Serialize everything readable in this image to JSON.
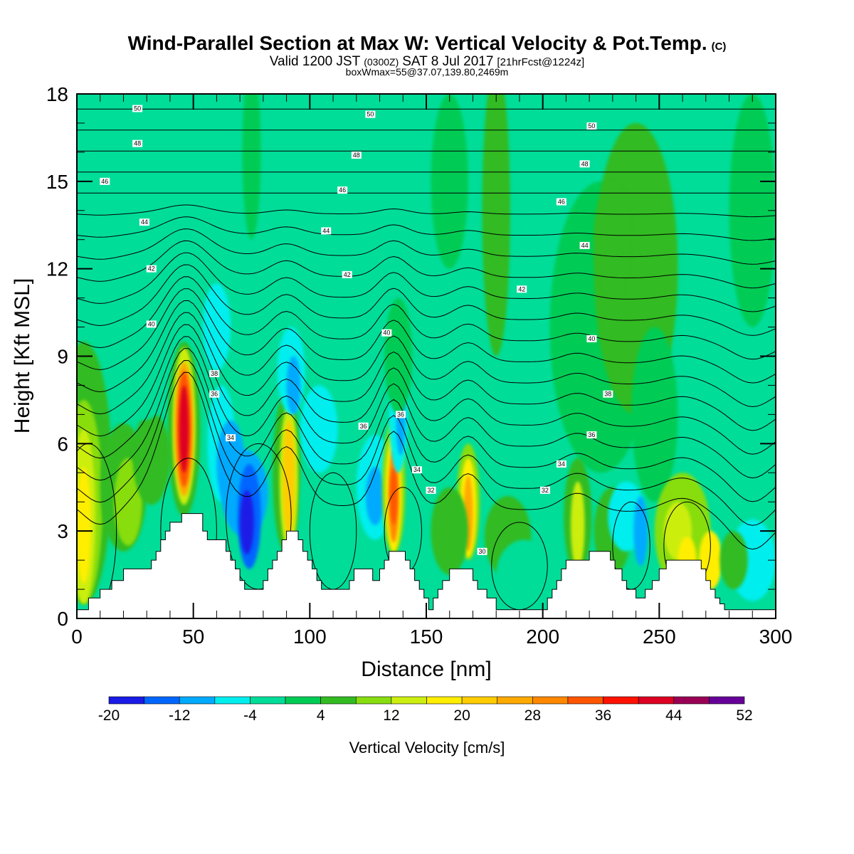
{
  "title": "Wind-Parallel Section at Max W: Vertical Velocity & Pot.Temp.",
  "title_mark": "(C)",
  "subtitle_a": "Valid 1200 JST",
  "subtitle_b": "(0300Z)",
  "subtitle_c": "SAT 8 Jul 2017",
  "subtitle_d": "[21hrFcst@1224z]",
  "subtitle2": "boxWmax=55@37.07,139.80,2469m",
  "chart_data": {
    "type": "heatmap",
    "xlabel": "Distance [nm]",
    "ylabel": "Height [Kft MSL]",
    "xlim": [
      0,
      300
    ],
    "ylim": [
      0,
      18
    ],
    "x_ticks": [
      "0",
      "50",
      "100",
      "150",
      "200",
      "250",
      "300"
    ],
    "y_ticks": [
      "0",
      "3",
      "6",
      "9",
      "12",
      "15",
      "18"
    ],
    "colorbar": {
      "label": "Vertical Velocity [cm/s]",
      "tick_labels": [
        "-20",
        "-12",
        "-4",
        "4",
        "12",
        "20",
        "28",
        "36",
        "44",
        "52"
      ],
      "bins": [
        -20,
        -16,
        -12,
        -8,
        -4,
        0,
        4,
        8,
        12,
        16,
        20,
        24,
        28,
        32,
        36,
        40,
        44,
        48,
        52
      ],
      "colors": [
        "#1a1ae6",
        "#0066ff",
        "#00aaff",
        "#00eeee",
        "#00dd99",
        "#00cc55",
        "#33bb22",
        "#88dd11",
        "#ccee11",
        "#ffee00",
        "#ffcc00",
        "#ffaa00",
        "#ff8800",
        "#ff5500",
        "#ff1100",
        "#dd0022",
        "#990055",
        "#660099"
      ]
    },
    "contour_labels": [
      "50",
      "48",
      "46",
      "44",
      "42",
      "40",
      "38",
      "36",
      "34",
      "32",
      "30"
    ],
    "terrain_kft": [
      [
        0,
        0.3
      ],
      [
        5,
        0.7
      ],
      [
        10,
        1.0
      ],
      [
        15,
        1.3
      ],
      [
        20,
        1.7
      ],
      [
        30,
        1.7
      ],
      [
        32,
        2.0
      ],
      [
        34,
        2.3
      ],
      [
        36,
        2.7
      ],
      [
        38,
        3.0
      ],
      [
        40,
        3.3
      ],
      [
        45,
        3.6
      ],
      [
        52,
        3.6
      ],
      [
        54,
        3.0
      ],
      [
        56,
        2.7
      ],
      [
        62,
        2.7
      ],
      [
        64,
        2.3
      ],
      [
        66,
        2.0
      ],
      [
        68,
        1.7
      ],
      [
        70,
        1.3
      ],
      [
        72,
        1.0
      ],
      [
        78,
        1.0
      ],
      [
        80,
        1.3
      ],
      [
        82,
        1.7
      ],
      [
        84,
        2.0
      ],
      [
        86,
        2.3
      ],
      [
        88,
        2.7
      ],
      [
        90,
        3.0
      ],
      [
        93,
        3.0
      ],
      [
        95,
        2.7
      ],
      [
        97,
        2.3
      ],
      [
        99,
        2.0
      ],
      [
        101,
        1.7
      ],
      [
        103,
        1.3
      ],
      [
        105,
        1.0
      ],
      [
        115,
        1.0
      ],
      [
        117,
        1.3
      ],
      [
        119,
        1.7
      ],
      [
        125,
        1.7
      ],
      [
        127,
        1.3
      ],
      [
        130,
        1.7
      ],
      [
        132,
        2.0
      ],
      [
        134,
        2.3
      ],
      [
        139,
        2.3
      ],
      [
        141,
        2.0
      ],
      [
        143,
        1.7
      ],
      [
        145,
        1.3
      ],
      [
        147,
        1.0
      ],
      [
        149,
        0.7
      ],
      [
        151,
        0.3
      ],
      [
        153,
        0.7
      ],
      [
        155,
        1.0
      ],
      [
        157,
        1.3
      ],
      [
        160,
        1.7
      ],
      [
        168,
        1.7
      ],
      [
        170,
        1.3
      ],
      [
        172,
        1.0
      ],
      [
        176,
        0.7
      ],
      [
        180,
        0.3
      ],
      [
        200,
        0.3
      ],
      [
        202,
        0.7
      ],
      [
        204,
        1.0
      ],
      [
        206,
        1.3
      ],
      [
        208,
        1.7
      ],
      [
        210,
        2.0
      ],
      [
        218,
        2.0
      ],
      [
        220,
        2.3
      ],
      [
        227,
        2.3
      ],
      [
        229,
        2.0
      ],
      [
        231,
        1.7
      ],
      [
        234,
        1.3
      ],
      [
        236,
        1.0
      ],
      [
        240,
        0.7
      ],
      [
        244,
        1.0
      ],
      [
        247,
        1.3
      ],
      [
        250,
        1.7
      ],
      [
        253,
        2.0
      ],
      [
        266,
        2.0
      ],
      [
        268,
        1.7
      ],
      [
        270,
        1.3
      ],
      [
        272,
        1.0
      ],
      [
        274,
        0.7
      ],
      [
        276,
        0.5
      ],
      [
        278,
        0.3
      ],
      [
        300,
        0.3
      ]
    ]
  }
}
